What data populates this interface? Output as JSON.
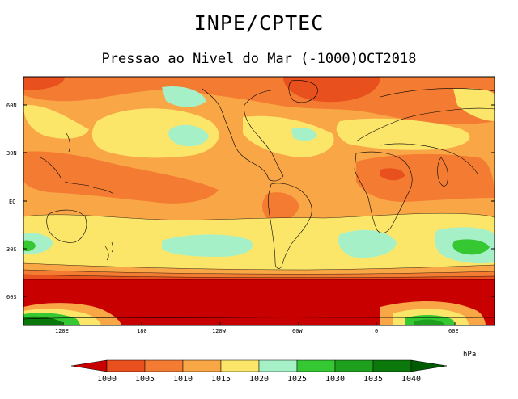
{
  "header": {
    "title": "INPE/CPTEC",
    "subtitle": "Pressao ao Nivel do Mar (-1000)OCT2018"
  },
  "axes": {
    "lat_labels": [
      "60N",
      "30N",
      "EQ",
      "30S",
      "60S"
    ],
    "lon_labels": [
      "120E",
      "180",
      "120W",
      "60W",
      "0",
      "60E"
    ]
  },
  "colorbar": {
    "unit": "hPa",
    "levels": [
      "1000",
      "1005",
      "1010",
      "1015",
      "1020",
      "1025",
      "1030",
      "1035",
      "1040"
    ],
    "colors": [
      "#c80000",
      "#e8501e",
      "#f47b32",
      "#f9a646",
      "#fbe66a",
      "#a6f0c8",
      "#36c832",
      "#1ea01e",
      "#0a780a",
      "#005a00"
    ]
  }
}
